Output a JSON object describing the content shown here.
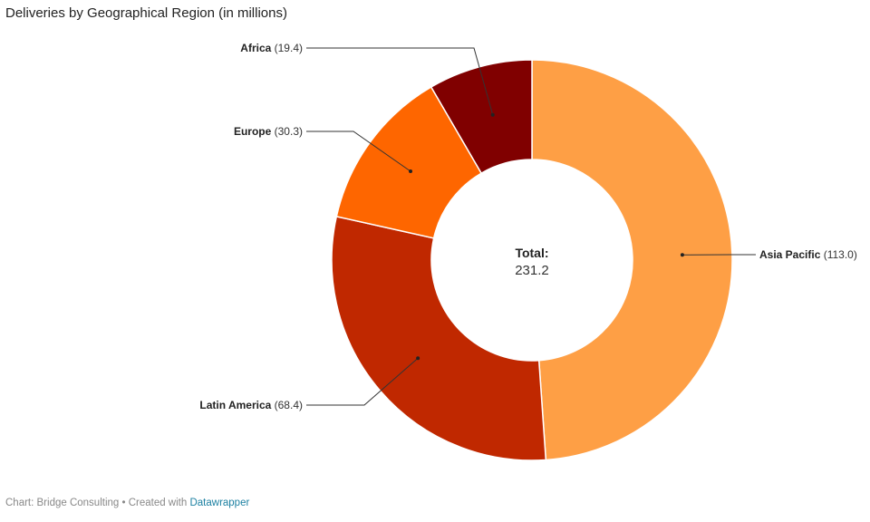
{
  "header": {
    "title": "Deliveries by Geographical Region (in millions)"
  },
  "footer": {
    "prefix": "Chart: Bridge Consulting • Created with ",
    "brand": "Datawrapper"
  },
  "chart_data": {
    "type": "pie",
    "variant": "donut",
    "title": "Deliveries by Geographical Region (in millions)",
    "center_label": {
      "title": "Total:",
      "value": "231.2"
    },
    "total": 231.2,
    "slices": [
      {
        "name": "Asia Pacific",
        "value": 113.0,
        "value_label": "(113.0)",
        "color": "#fe9f45"
      },
      {
        "name": "Latin America",
        "value": 68.4,
        "value_label": "(68.4)",
        "color": "#c02800"
      },
      {
        "name": "Europe",
        "value": 30.3,
        "value_label": "(30.3)",
        "color": "#fe6600"
      },
      {
        "name": "Africa",
        "value": 19.4,
        "value_label": "(19.4)",
        "color": "#800000"
      }
    ],
    "legend": "none"
  }
}
